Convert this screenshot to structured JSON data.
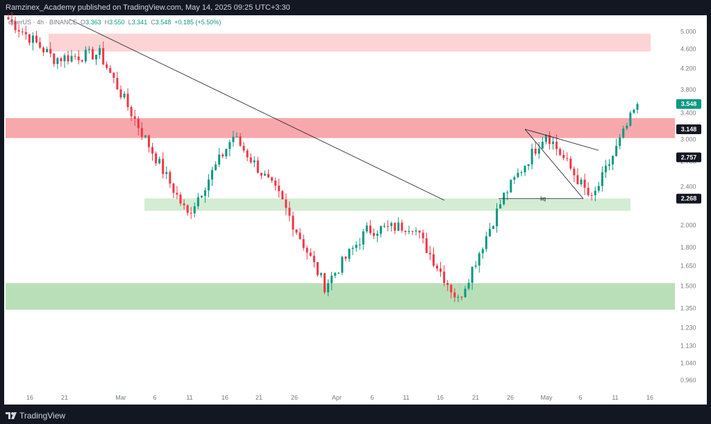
{
  "header": {
    "publish_line": "Ramzinex_Academy published on TradingView.com, May 14, 2025 09:25 UTC+3:30"
  },
  "legend": {
    "symbol": "etherUS · 4h · BINANCE",
    "open_label": "O",
    "open": "3.363",
    "high_label": "H",
    "high": "3.550",
    "low_label": "L",
    "low": "3.341",
    "close_label": "C",
    "close": "3.548",
    "change": "+0.185 (+5.50%)"
  },
  "footer": {
    "brand": "TradingView"
  },
  "colors": {
    "up": "#089981",
    "down": "#f23645",
    "resistance_zone": "#f7a8ad",
    "resistance_zone_light": "#fcd4d6",
    "support_zone": "#b9dfb9",
    "support_zone_light": "#d4ecd4",
    "price_label_bg": "#131722",
    "last_price_bg": "#089981"
  },
  "chart_data": {
    "type": "candlestick",
    "x_ticks": [
      "16",
      "21",
      "Mar",
      "6",
      "11",
      "16",
      "21",
      "26",
      "Apr",
      "6",
      "11",
      "16",
      "21",
      "26",
      "May",
      "6",
      "11",
      "16"
    ],
    "y_ticks": [
      "5.000",
      "4.600",
      "4.200",
      "3.800",
      "3.400",
      "3.000",
      "2.700",
      "2.400",
      "2.000",
      "1.800",
      "1.650",
      "1.500",
      "1.350",
      "1.230",
      "1.130",
      "1.040",
      "0.960"
    ],
    "y_scale": "log",
    "ylim": [
      0.92,
      5.4
    ],
    "price_labels": [
      {
        "value": 3.548,
        "text": "3.548",
        "kind": "last"
      },
      {
        "value": 3.148,
        "text": "3.148",
        "kind": "level"
      },
      {
        "value": 2.757,
        "text": "2.757",
        "kind": "level"
      },
      {
        "value": 2.268,
        "text": "2.268",
        "kind": "level"
      }
    ],
    "zones": [
      {
        "kind": "resistance",
        "top": 4.95,
        "bottom": 4.55
      },
      {
        "kind": "resistance",
        "top": 3.32,
        "bottom": 3.02
      },
      {
        "kind": "support",
        "top": 2.27,
        "bottom": 2.14
      },
      {
        "kind": "support",
        "top": 1.52,
        "bottom": 1.34
      }
    ],
    "annotations": [
      {
        "kind": "text",
        "text": "liq",
        "x": "May 1",
        "y": 2.268
      }
    ],
    "key_points": [
      {
        "x": "Feb 13",
        "close": 5.3
      },
      {
        "x": "Feb 18",
        "close": 4.4
      },
      {
        "x": "Feb 21",
        "close": 4.5
      },
      {
        "x": "Feb 25",
        "close": 3.1
      },
      {
        "x": "Feb 28",
        "close": 2.1
      },
      {
        "x": "Mar 3",
        "close": 3.05
      },
      {
        "x": "Mar 5",
        "close": 2.3
      },
      {
        "x": "Mar 11",
        "close": 1.5
      },
      {
        "x": "Mar 20",
        "close": 1.95
      },
      {
        "x": "Mar 30",
        "close": 2.0
      },
      {
        "x": "Apr 7",
        "close": 1.4
      },
      {
        "x": "Apr 16",
        "close": 2.3
      },
      {
        "x": "Apr 28",
        "close": 3.1
      },
      {
        "x": "May 6",
        "close": 2.25
      },
      {
        "x": "May 14",
        "close": 3.548
      }
    ]
  }
}
